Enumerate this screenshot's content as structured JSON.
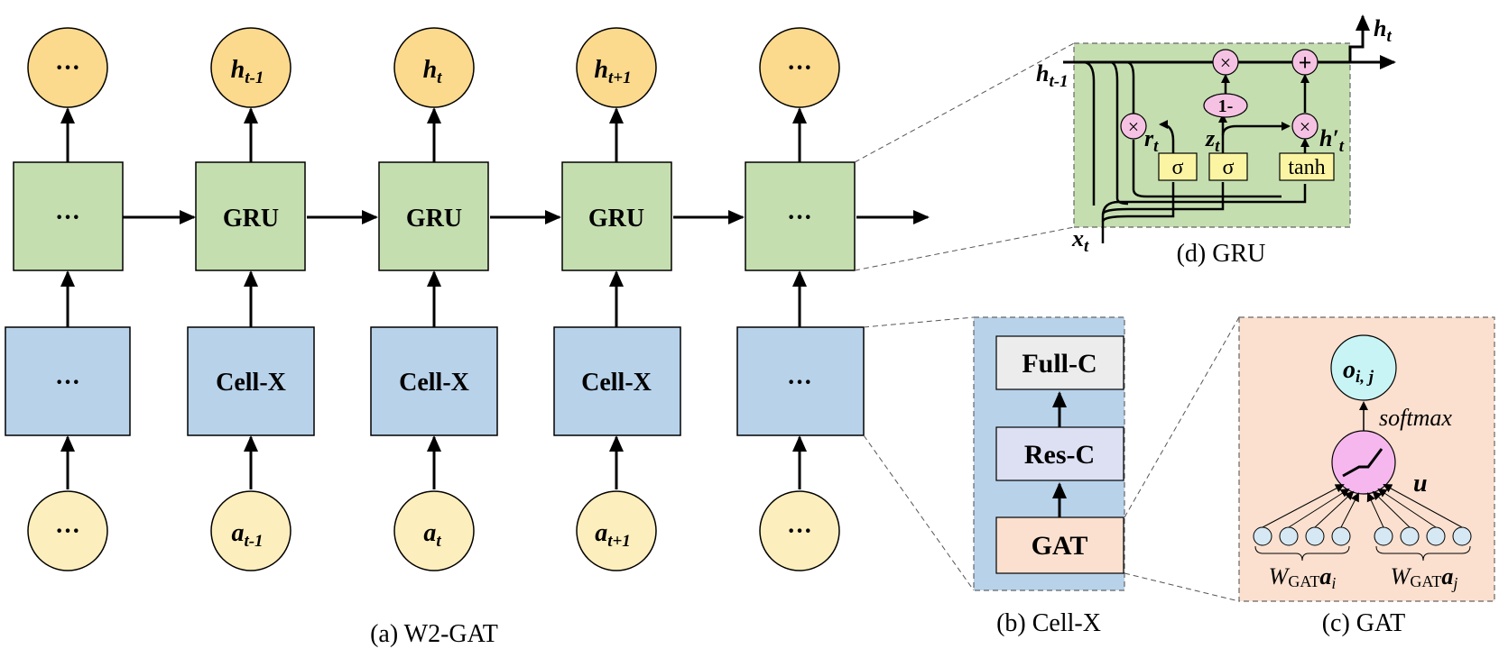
{
  "main": {
    "caption": "(a) W2-GAT",
    "outputs": [
      "···",
      "h",
      "h",
      "h",
      "···"
    ],
    "output_subs": [
      "",
      "t-1",
      "t",
      "t+1",
      ""
    ],
    "gru_row": [
      "···",
      "GRU",
      "GRU",
      "GRU",
      "···"
    ],
    "cell_row": [
      "···",
      "Cell-X",
      "Cell-X",
      "Cell-X",
      "···"
    ],
    "inputs": [
      "···",
      "a",
      "a",
      "a",
      "···"
    ],
    "input_subs": [
      "",
      "t-1",
      "t",
      "t+1",
      ""
    ]
  },
  "cellx": {
    "caption": "(b) Cell-X",
    "full_c": "Full-C",
    "res_c": "Res-C",
    "gat": "GAT"
  },
  "gat": {
    "caption": "(c) GAT",
    "output_label": "o",
    "output_sub": "i, j",
    "softmax": "softmax",
    "u": "u",
    "w_left": "W",
    "w_left_sub": "GAT",
    "w_left_a": "a",
    "w_left_a_sub": "i",
    "w_right": "W",
    "w_right_sub": "GAT",
    "w_right_a": "a",
    "w_right_a_sub": "j"
  },
  "gru": {
    "caption": "(d) GRU",
    "h_out": "h",
    "h_out_sub": "t",
    "h_prev": "h",
    "h_prev_sub": "t-1",
    "x": "x",
    "x_sub": "t",
    "r": "r",
    "r_sub": "t",
    "z": "z",
    "z_sub": "t",
    "h_cand": "h′",
    "h_cand_sub": "t",
    "sigma1": "σ",
    "sigma2": "σ",
    "tanh": "tanh",
    "one_minus": "1-",
    "mult": "×",
    "plus": "+"
  },
  "colors": {
    "gru_green": "#c5deb0",
    "cell_blue": "#b8d2ea",
    "output_orange": "#fbd98d",
    "input_cream": "#fdeebd",
    "gat_peach": "#fbe0cf",
    "pink": "#f6c2e3",
    "cyan": "#c8f4f6",
    "node_blue": "#d5e8f4",
    "yellow_box": "#fbf5a3",
    "res_lavender": "#dde0f3",
    "full_gray": "#ececec"
  }
}
